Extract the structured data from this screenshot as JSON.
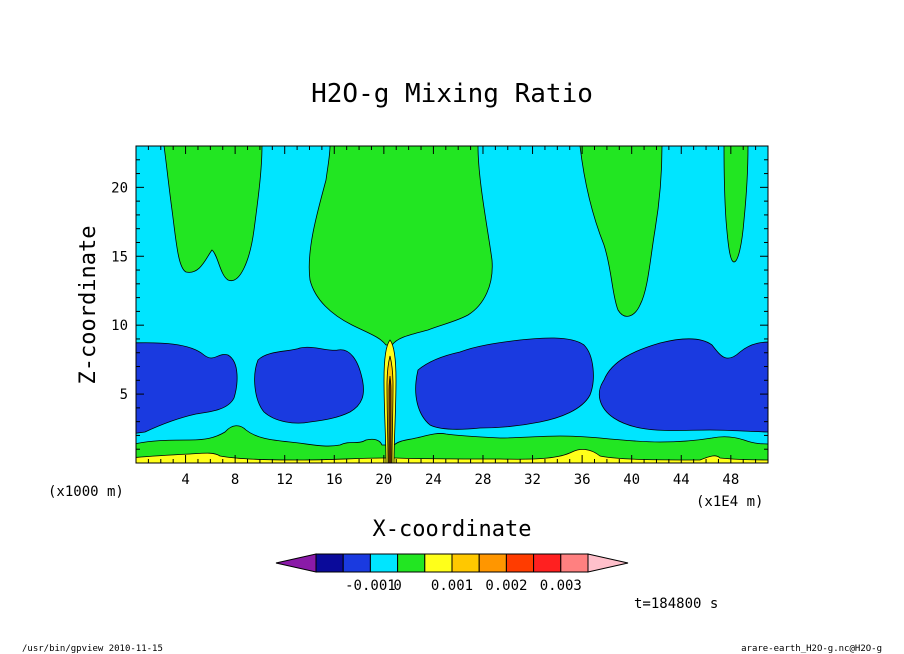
{
  "chart_data": {
    "type": "contour",
    "title": "H2O-g Mixing Ratio",
    "xlabel": "X-coordinate",
    "ylabel": "Z-coordinate",
    "x_unit": "(x1E4 m)",
    "y_unit": "(x1000 m)",
    "xlim": [
      0,
      51
    ],
    "ylim": [
      0,
      23
    ],
    "x_ticks": [
      4,
      8,
      12,
      16,
      20,
      24,
      28,
      32,
      36,
      40,
      44,
      48
    ],
    "y_ticks": [
      5,
      10,
      15,
      20
    ],
    "grid": false,
    "time_label": "t=184800 s",
    "colorbar": {
      "colors": [
        "#8a1aa8",
        "#0a0a9a",
        "#1a3ae0",
        "#00e5ff",
        "#22e622",
        "#ffff1a",
        "#ffc800",
        "#ff9600",
        "#ff3c00",
        "#ff2020",
        "#ff8080",
        "#ffc0cb"
      ],
      "labels": [
        "-0.001",
        "0",
        "0.001",
        "0.002",
        "0.003"
      ]
    }
  },
  "footer": {
    "left": "/usr/bin/gpview   2010-11-15",
    "right": "arare-earth_H2O-g.nc@H2O-g"
  }
}
